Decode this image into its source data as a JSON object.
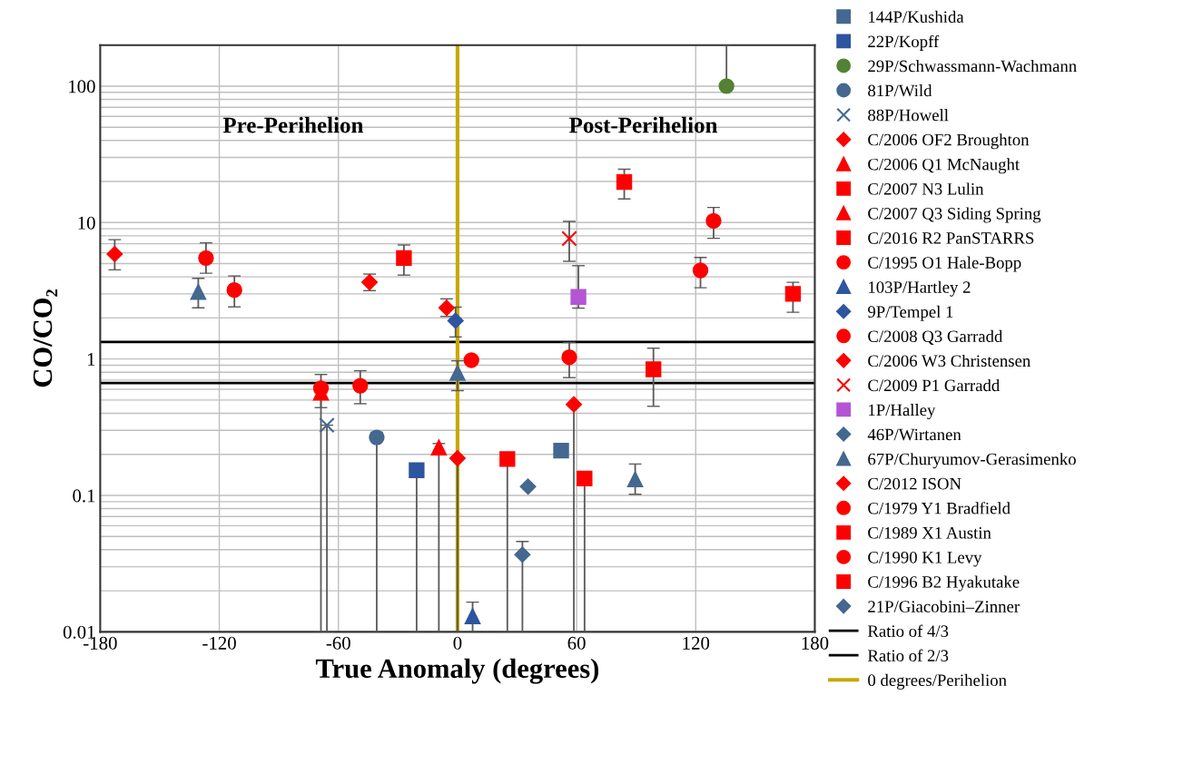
{
  "chart_data": {
    "type": "scatter",
    "xlabel": "True Anomaly (degrees)",
    "ylabel": "CO/CO₂",
    "annotations": [
      "Pre-Perihelion",
      "Post-Perihelion"
    ],
    "xlim": [
      -180,
      180
    ],
    "xticks": [
      -180,
      -120,
      -60,
      0,
      60,
      120,
      180
    ],
    "ylim": [
      0.01,
      200
    ],
    "yticks": [
      0.01,
      0.1,
      1,
      10,
      100
    ],
    "log": true,
    "grid": true,
    "legend": "right",
    "ref_lines": [
      {
        "axis": "y",
        "value": 1.3333,
        "label": "Ratio of 4/3",
        "color": "#000000"
      },
      {
        "axis": "y",
        "value": 0.6667,
        "label": "Ratio of 2/3",
        "color": "#000000"
      },
      {
        "axis": "x",
        "value": 0,
        "label": "0 degrees/Perihelion",
        "color": "#c8a800"
      }
    ],
    "series": [
      {
        "name": "144P/Kushida",
        "color": "#44688f",
        "marker": "square",
        "x": [
          52.2
        ],
        "values": [
          0.213
        ]
      },
      {
        "name": "22P/Kopff",
        "color": "#2e55a0",
        "marker": "square",
        "x": [
          -20.6
        ],
        "values": [
          0.153
        ],
        "errors": [
          [
            0.01,
            0.153
          ]
        ]
      },
      {
        "name": "29P/Schwassmann-Wachmann",
        "color": "#548235",
        "marker": "circle",
        "x": [
          135.5
        ],
        "values": [
          100
        ],
        "errors": [
          [
            100,
            200
          ]
        ]
      },
      {
        "name": "81P/Wild",
        "color": "#44688f",
        "marker": "circle",
        "x": [
          -40.7
        ],
        "values": [
          0.266
        ],
        "errors": [
          [
            0.01,
            0.29
          ]
        ]
      },
      {
        "name": "88P/Howell",
        "color": "#44688f",
        "marker": "cross",
        "x": [
          -65.8
        ],
        "values": [
          0.327
        ],
        "errors": [
          [
            0.01,
            0.327
          ]
        ]
      },
      {
        "name": "C/2006 OF2 Broughton",
        "color": "#ff0000",
        "marker": "diamond",
        "x": [
          0,
          58.6
        ],
        "values": [
          0.187,
          0.465
        ],
        "errors": [
          [
            0.01,
            0.187
          ],
          [
            0.01,
            0.465
          ]
        ]
      },
      {
        "name": "C/2006 Q1 McNaught",
        "color": "#ff0000",
        "marker": "triangle",
        "x": [
          -9.4
        ],
        "values": [
          0.224
        ],
        "errors": [
          [
            0.01,
            0.24
          ]
        ]
      },
      {
        "name": "C/2007 N3 Lulin",
        "color": "#ff0000",
        "marker": "square",
        "x": [
          25.1,
          64
        ],
        "values": [
          0.185,
          0.133
        ],
        "errors": [
          [
            0.01,
            0.185
          ],
          [
            0.01,
            0.133
          ]
        ]
      },
      {
        "name": "C/2007 Q3 Siding Spring",
        "color": "#ff0000",
        "marker": "triangle",
        "x": [
          -68.8
        ],
        "values": [
          0.566
        ],
        "errors": [
          [
            0.01,
            0.566
          ]
        ]
      },
      {
        "name": "C/2016 R2 PanSTARRS",
        "color": "#ff0000",
        "marker": "square",
        "x": [
          -27,
          84
        ],
        "values": [
          5.5,
          19.8
        ],
        "errors": [
          [
            4.12,
            6.85
          ],
          [
            14.9,
            24.6
          ]
        ]
      },
      {
        "name": "C/1995 O1 Hale-Bopp",
        "color": "#ff0000",
        "marker": "circle",
        "x": [
          -126.7,
          -112.4,
          122.4,
          129
        ],
        "values": [
          5.5,
          3.2,
          4.46,
          10.3
        ],
        "errors": [
          [
            4.25,
            7.1
          ],
          [
            2.41,
            4.06
          ],
          [
            3.33,
            5.55
          ],
          [
            7.67,
            12.9
          ]
        ]
      },
      {
        "name": "103P/Hartley 2",
        "color": "#2e55a0",
        "marker": "triangle",
        "x": [
          7.6
        ],
        "values": [
          0.013
        ],
        "errors": [
          [
            0.01,
            0.0165
          ]
        ]
      },
      {
        "name": "9P/Tempel 1",
        "color": "#2e55a0",
        "marker": "diamond",
        "x": [
          -1
        ],
        "values": [
          1.91
        ],
        "errors": [
          [
            1.45,
            2.4
          ]
        ]
      },
      {
        "name": "C/2008 Q3 Garradd",
        "color": "#ff0000",
        "marker": "circle",
        "x": [
          7
        ],
        "values": [
          0.98
        ]
      },
      {
        "name": "C/2006 W3 Christensen",
        "color": "#ff0000",
        "marker": "diamond",
        "x": [
          -44.3,
          -5.5
        ],
        "values": [
          3.65,
          2.37
        ],
        "errors": [
          [
            3.17,
            4.19
          ],
          [
            2.05,
            2.76
          ]
        ]
      },
      {
        "name": "C/2009 P1 Garradd",
        "color": "#ff0000",
        "marker": "cross",
        "x": [
          56.3
        ],
        "values": [
          7.64
        ],
        "errors": [
          [
            5.2,
            10.2
          ]
        ]
      },
      {
        "name": "1P/Halley",
        "color": "#b455d6",
        "marker": "square",
        "x": [
          60.9
        ],
        "values": [
          2.85
        ],
        "errors": [
          [
            2.36,
            4.83
          ]
        ]
      },
      {
        "name": "46P/Wirtanen",
        "color": "#44688f",
        "marker": "diamond",
        "x": [
          32.7
        ],
        "values": [
          0.0368
        ],
        "errors": [
          [
            0.01,
            0.046
          ]
        ]
      },
      {
        "name": "67P/Churyumov-Gerasimenko",
        "color": "#44688f",
        "marker": "triangle",
        "x": [
          -130.6,
          0,
          89.5
        ],
        "values": [
          3.1,
          0.79,
          0.131
        ],
        "errors": [
          [
            2.37,
            3.9
          ],
          [
            0.586,
            0.97
          ],
          [
            0.102,
            0.17
          ]
        ]
      },
      {
        "name": "C/2012 ISON",
        "color": "#ff0000",
        "marker": "diamond",
        "x": [
          -172.7
        ],
        "values": [
          5.88
        ],
        "errors": [
          [
            4.5,
            7.5
          ]
        ]
      },
      {
        "name": "C/1979 Y1 Bradfield",
        "color": "#ff0000",
        "marker": "circle",
        "x": [
          56.3
        ],
        "values": [
          1.03
        ],
        "errors": [
          [
            0.73,
            1.32
          ]
        ]
      },
      {
        "name": "C/1989 X1 Austin",
        "color": "#ff0000",
        "marker": "square",
        "x": [
          98.7
        ],
        "values": [
          0.84
        ],
        "errors": [
          [
            0.45,
            1.2
          ]
        ]
      },
      {
        "name": "C/1990 K1 Levy",
        "color": "#ff0000",
        "marker": "circle",
        "x": [
          -68.8,
          -49
        ],
        "values": [
          0.61,
          0.637
        ],
        "errors": [
          [
            0.44,
            0.77
          ],
          [
            0.47,
            0.82
          ]
        ]
      },
      {
        "name": "C/1996 B2 Hyakutake",
        "color": "#ff0000",
        "marker": "square",
        "x": [
          169
        ],
        "values": [
          3.0
        ],
        "errors": [
          [
            2.2,
            3.65
          ]
        ]
      },
      {
        "name": "21P/Giacobini–Zinner",
        "color": "#44688f",
        "marker": "diamond",
        "x": [
          35.5
        ],
        "values": [
          0.116
        ]
      }
    ]
  }
}
